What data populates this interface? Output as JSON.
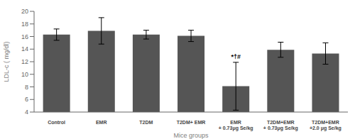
{
  "chart_data": {
    "type": "bar",
    "categories": [
      "Control",
      "EMR",
      "T2DM",
      "T2DM+ EMR",
      "EMR\n+ 0.73μg Se/kg",
      "T2DM+EMR\n+ 0.73μg Se/kg",
      "T2DM+EMR\n+2.0 μg Se/kg"
    ],
    "values": [
      16.3,
      16.9,
      16.3,
      16.1,
      8.1,
      13.9,
      13.3
    ],
    "errors": [
      0.9,
      2.1,
      0.7,
      0.9,
      3.8,
      1.2,
      1.7
    ],
    "color": "#555555",
    "annotations": [
      {
        "text": "*†#",
        "category": "EMR\n+ 0.73μg Se/kg"
      }
    ],
    "xlabel": "Mice groups",
    "ylabel": "LDL-c ( mg/dl)",
    "ylim": [
      4,
      20
    ],
    "yticks": [
      4,
      6,
      8,
      10,
      12,
      14,
      16,
      18,
      20
    ],
    "grid": false
  }
}
